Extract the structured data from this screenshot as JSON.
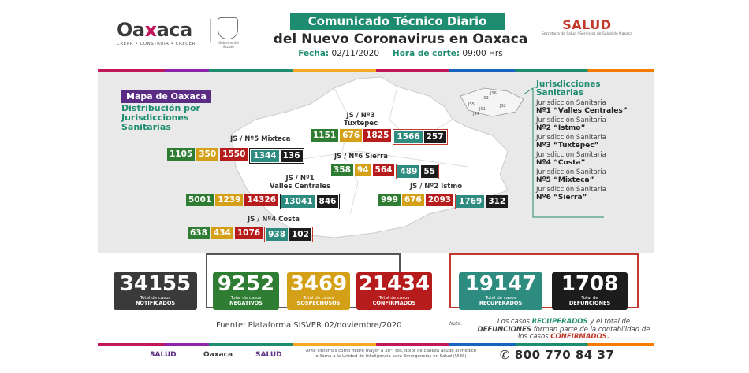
{
  "header": {
    "logo_word_a": "Oa",
    "logo_word_x": "x",
    "logo_word_b": "aca",
    "logo_sub": "CREAR • CONSTRUIR • CRECER",
    "seal_sub": "Gobierno del Estado",
    "title_line1": "Comunicado Técnico Diario",
    "title_line2": "del Nuevo Coronavirus en Oaxaca",
    "fecha_label": "Fecha:",
    "fecha_value": "02/11/2020",
    "hora_label": "Hora de corte:",
    "hora_value": "09:00 Hrs",
    "salud": "SALUD",
    "salud_sub": "Secretaría de Salud / Servicios de Salud de Oaxaca"
  },
  "map": {
    "title": "Mapa de Oaxaca",
    "subtitle": "Distribución por Jurisdicciones Sanitarias",
    "inset_labels": [
      "JS1",
      "JS2",
      "JS3",
      "JS4",
      "JS5",
      "JS6"
    ]
  },
  "jurisdicciones": {
    "heading": "Jurisdicciones Sanitarias",
    "items": [
      {
        "line1": "Jurisdicción Sanitaria",
        "line2": "Nº1 “Valles Centrales”"
      },
      {
        "line1": "Jurisdicción Sanitaria",
        "line2": "Nº2 “Istmo”"
      },
      {
        "line1": "Jurisdicción Sanitaria",
        "line2": "Nº3 “Tuxtepec”"
      },
      {
        "line1": "Jurisdicción Sanitaria",
        "line2": "Nº4 “Costa”"
      },
      {
        "line1": "Jurisdicción Sanitaria",
        "line2": "Nº5 “Mixteca”"
      },
      {
        "line1": "Jurisdicción Sanitaria",
        "line2": "Nº6 “Sierra”"
      }
    ]
  },
  "regions": {
    "tuxtepec": {
      "label1": "JS / Nº3",
      "label2": "Tuxtepec",
      "negativos": "1151",
      "sospechosos": "676",
      "confirmados": "1825",
      "recuperados": "1566",
      "defunciones": "257"
    },
    "mixteca": {
      "label1": "JS / Nº5 Mixteca",
      "negativos": "1105",
      "sospechosos": "350",
      "confirmados": "1550",
      "recuperados": "1344",
      "defunciones": "136"
    },
    "sierra": {
      "label1": "JS / Nº6 Sierra",
      "negativos": "358",
      "sospechosos": "94",
      "confirmados": "564",
      "recuperados": "489",
      "defunciones": "55"
    },
    "valles": {
      "label1": "JS / Nº1",
      "label2": "Valles Centrales",
      "negativos": "5001",
      "sospechosos": "1239",
      "confirmados": "14326",
      "recuperados": "13041",
      "defunciones": "846"
    },
    "istmo": {
      "label1": "JS / Nº2 Istmo",
      "negativos": "999",
      "sospechosos": "676",
      "confirmados": "2093",
      "recuperados": "1769",
      "defunciones": "312"
    },
    "costa": {
      "label1": "JS / Nº4 Costa",
      "negativos": "638",
      "sospechosos": "434",
      "confirmados": "1076",
      "recuperados": "938",
      "defunciones": "102"
    }
  },
  "totals": {
    "notificados": {
      "value": "34155",
      "line1": "Total de casos",
      "line2": "NOTIFICADOS"
    },
    "negativos": {
      "value": "9252",
      "line1": "Total de casos",
      "line2": "NEGATIVOS"
    },
    "sospechosos": {
      "value": "3469",
      "line1": "Total de casos",
      "line2": "SOSPECHOSOS"
    },
    "confirmados": {
      "value": "21434",
      "line1": "Total de casos",
      "line2": "CONFIRMADOS"
    },
    "recuperados": {
      "value": "19147",
      "line1": "Total de casos",
      "line2": "RECUPERADOS"
    },
    "defunciones": {
      "value": "1708",
      "line1": "Total de",
      "line2": "DEFUNCIONES"
    }
  },
  "footer": {
    "fuente": "Fuente: Plataforma SISVER 02/noviembre/2020",
    "nota_label": "Nota.",
    "nota_a": "Los casos",
    "nota_recuperados": "RECUPERADOS",
    "nota_b": "y el total de",
    "nota_defunciones": "DEFUNCIONES",
    "nota_c": "forman parte de la contabilidad de los casos",
    "nota_confirmados": "CONFIRMADOS.",
    "salud_logo": "SALUD",
    "oaxaca_logo": "Oaxaca",
    "salud_logo2": "SALUD",
    "sintomas": "Ante síntomas como fiebre mayor a 38°, tos, dolor de cabeza acude al médico o llama a la Unidad de Inteligencia para Emergencias en Salud (UIES)",
    "telefono": "800 770 84 37"
  },
  "colors": {
    "negativos": "#2e7d32",
    "sospechosos": "#d4a017",
    "confirmados": "#b71c1c",
    "recuperados": "#2e8b80",
    "defunciones": "#1c1c1c",
    "notificados": "#3a3a3a",
    "brand_green": "#1e8c6f",
    "brand_purple": "#5b2c83"
  }
}
